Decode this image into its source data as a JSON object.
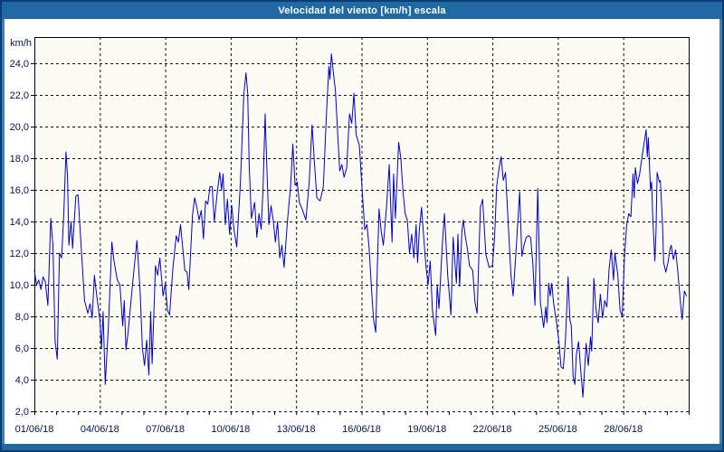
{
  "window": {
    "title": "Velocidad del viento [km/h] escala"
  },
  "colors": {
    "title_bar": "#2069a3",
    "frame_border": "#0c3c74",
    "edge_accent": "#3d7fb4",
    "series_line": "#0000cc",
    "grid_line": "#111111",
    "plot_background": "#fcfcf5",
    "axis_text": "#00134d"
  },
  "chart_data": {
    "type": "line",
    "title": "Velocidad del viento [km/h] escala",
    "ylabel": "km/h",
    "xlabel": "",
    "grid": "dashed",
    "legend_position": "none",
    "ylim": [
      2,
      25.66
    ],
    "xlim_days": [
      0,
      30
    ],
    "y_ticks": [
      {
        "value": 2,
        "label": "2,0"
      },
      {
        "value": 4,
        "label": "4,0"
      },
      {
        "value": 6,
        "label": "6,0"
      },
      {
        "value": 8,
        "label": "8,0"
      },
      {
        "value": 10,
        "label": "10,0"
      },
      {
        "value": 12,
        "label": "12,0"
      },
      {
        "value": 14,
        "label": "14,0"
      },
      {
        "value": 16,
        "label": "16,0"
      },
      {
        "value": 18,
        "label": "18,0"
      },
      {
        "value": 20,
        "label": "20,0"
      },
      {
        "value": 22,
        "label": "22,0"
      },
      {
        "value": 24,
        "label": "24,0"
      }
    ],
    "x_ticks": [
      {
        "day": 0,
        "label": "01/06/18"
      },
      {
        "day": 3,
        "label": "04/06/18"
      },
      {
        "day": 6,
        "label": "07/06/18"
      },
      {
        "day": 9,
        "label": "10/06/18"
      },
      {
        "day": 12,
        "label": "13/06/18"
      },
      {
        "day": 15,
        "label": "16/06/18"
      },
      {
        "day": 18,
        "label": "19/06/18"
      },
      {
        "day": 21,
        "label": "22/06/18"
      },
      {
        "day": 24,
        "label": "25/06/18"
      },
      {
        "day": 27,
        "label": "28/06/18"
      }
    ],
    "series": [
      {
        "name": "Velocidad del viento [km/h]",
        "points": [
          [
            0.0,
            10.9
          ],
          [
            0.1,
            10.0
          ],
          [
            0.2,
            10.3
          ],
          [
            0.3,
            9.7
          ],
          [
            0.4,
            10.5
          ],
          [
            0.5,
            10.2
          ],
          [
            0.62,
            8.7
          ],
          [
            0.75,
            14.2
          ],
          [
            0.85,
            12.5
          ],
          [
            0.95,
            6.4
          ],
          [
            1.05,
            5.3
          ],
          [
            1.15,
            12.0
          ],
          [
            1.25,
            11.7
          ],
          [
            1.35,
            14.5
          ],
          [
            1.45,
            18.4
          ],
          [
            1.52,
            16.9
          ],
          [
            1.58,
            12.5
          ],
          [
            1.68,
            14.0
          ],
          [
            1.75,
            12.3
          ],
          [
            1.9,
            15.6
          ],
          [
            2.0,
            15.7
          ],
          [
            2.15,
            12.3
          ],
          [
            2.3,
            9.0
          ],
          [
            2.45,
            8.2
          ],
          [
            2.55,
            8.8
          ],
          [
            2.65,
            7.9
          ],
          [
            2.75,
            10.6
          ],
          [
            2.85,
            9.4
          ],
          [
            3.0,
            7.8
          ],
          [
            3.08,
            6.0
          ],
          [
            3.15,
            8.3
          ],
          [
            3.25,
            3.7
          ],
          [
            3.4,
            7.5
          ],
          [
            3.55,
            12.7
          ],
          [
            3.65,
            11.5
          ],
          [
            3.8,
            10.3
          ],
          [
            3.92,
            10.0
          ],
          [
            4.05,
            7.4
          ],
          [
            4.12,
            9.0
          ],
          [
            4.2,
            5.9
          ],
          [
            4.3,
            7.0
          ],
          [
            4.5,
            10.0
          ],
          [
            4.7,
            12.8
          ],
          [
            4.85,
            9.5
          ],
          [
            4.95,
            6.0
          ],
          [
            5.05,
            4.9
          ],
          [
            5.15,
            6.5
          ],
          [
            5.25,
            4.3
          ],
          [
            5.33,
            8.3
          ],
          [
            5.4,
            5.0
          ],
          [
            5.55,
            11.2
          ],
          [
            5.65,
            10.6
          ],
          [
            5.75,
            11.7
          ],
          [
            5.9,
            9.3
          ],
          [
            6.0,
            10.1
          ],
          [
            6.1,
            8.4
          ],
          [
            6.2,
            8.1
          ],
          [
            6.35,
            11.0
          ],
          [
            6.5,
            13.1
          ],
          [
            6.6,
            12.7
          ],
          [
            6.7,
            13.8
          ],
          [
            6.9,
            10.9
          ],
          [
            7.0,
            10.8
          ],
          [
            7.08,
            9.7
          ],
          [
            7.25,
            14.4
          ],
          [
            7.35,
            15.5
          ],
          [
            7.45,
            14.9
          ],
          [
            7.55,
            14.1
          ],
          [
            7.65,
            14.7
          ],
          [
            7.75,
            12.9
          ],
          [
            7.85,
            15.3
          ],
          [
            7.95,
            15.1
          ],
          [
            8.05,
            16.2
          ],
          [
            8.15,
            16.2
          ],
          [
            8.25,
            14.0
          ],
          [
            8.38,
            15.8
          ],
          [
            8.5,
            17.1
          ],
          [
            8.58,
            16.0
          ],
          [
            8.65,
            17.0
          ],
          [
            8.75,
            13.8
          ],
          [
            8.85,
            15.4
          ],
          [
            8.95,
            13.2
          ],
          [
            9.05,
            15.0
          ],
          [
            9.15,
            13.5
          ],
          [
            9.28,
            12.4
          ],
          [
            9.45,
            16.5
          ],
          [
            9.6,
            22.0
          ],
          [
            9.7,
            23.4
          ],
          [
            9.78,
            22.1
          ],
          [
            9.85,
            17.5
          ],
          [
            9.95,
            14.2
          ],
          [
            10.1,
            15.2
          ],
          [
            10.2,
            13.0
          ],
          [
            10.3,
            14.5
          ],
          [
            10.4,
            13.5
          ],
          [
            10.48,
            16.0
          ],
          [
            10.58,
            20.8
          ],
          [
            10.65,
            17.7
          ],
          [
            10.75,
            13.8
          ],
          [
            10.85,
            15.0
          ],
          [
            10.95,
            14.1
          ],
          [
            11.05,
            12.7
          ],
          [
            11.15,
            14.0
          ],
          [
            11.25,
            11.7
          ],
          [
            11.35,
            12.5
          ],
          [
            11.45,
            11.1
          ],
          [
            11.6,
            14.0
          ],
          [
            11.75,
            16.3
          ],
          [
            11.85,
            18.9
          ],
          [
            11.95,
            16.3
          ],
          [
            12.05,
            16.5
          ],
          [
            12.15,
            15.2
          ],
          [
            12.3,
            14.7
          ],
          [
            12.45,
            14.1
          ],
          [
            12.6,
            16.5
          ],
          [
            12.73,
            20.1
          ],
          [
            12.85,
            17.5
          ],
          [
            12.95,
            15.5
          ],
          [
            13.1,
            15.3
          ],
          [
            13.25,
            16.2
          ],
          [
            13.4,
            21.0
          ],
          [
            13.5,
            23.8
          ],
          [
            13.55,
            23.0
          ],
          [
            13.62,
            24.6
          ],
          [
            13.7,
            23.5
          ],
          [
            13.8,
            22.3
          ],
          [
            13.9,
            19.7
          ],
          [
            14.0,
            17.2
          ],
          [
            14.1,
            17.6
          ],
          [
            14.2,
            16.8
          ],
          [
            14.32,
            17.4
          ],
          [
            14.45,
            20.8
          ],
          [
            14.55,
            20.2
          ],
          [
            14.65,
            22.1
          ],
          [
            14.75,
            19.5
          ],
          [
            14.9,
            18.8
          ],
          [
            15.05,
            15.5
          ],
          [
            15.15,
            13.5
          ],
          [
            15.25,
            13.8
          ],
          [
            15.35,
            12.3
          ],
          [
            15.45,
            9.9
          ],
          [
            15.55,
            7.8
          ],
          [
            15.65,
            7.0
          ],
          [
            15.72,
            11.0
          ],
          [
            15.8,
            14.8
          ],
          [
            15.9,
            13.4
          ],
          [
            16.0,
            12.5
          ],
          [
            16.15,
            15.0
          ],
          [
            16.27,
            17.6
          ],
          [
            16.4,
            12.7
          ],
          [
            16.47,
            17.0
          ],
          [
            16.55,
            14.2
          ],
          [
            16.7,
            19.0
          ],
          [
            16.8,
            18.0
          ],
          [
            16.9,
            15.9
          ],
          [
            17.0,
            14.5
          ],
          [
            17.1,
            14.1
          ],
          [
            17.2,
            12.0
          ],
          [
            17.3,
            13.2
          ],
          [
            17.4,
            11.7
          ],
          [
            17.5,
            13.8
          ],
          [
            17.57,
            11.4
          ],
          [
            17.65,
            13.5
          ],
          [
            17.75,
            14.9
          ],
          [
            17.85,
            13.0
          ],
          [
            17.95,
            11.2
          ],
          [
            18.05,
            10.0
          ],
          [
            18.15,
            11.5
          ],
          [
            18.25,
            8.4
          ],
          [
            18.4,
            6.8
          ],
          [
            18.47,
            10.0
          ],
          [
            18.55,
            8.5
          ],
          [
            18.7,
            12.5
          ],
          [
            18.8,
            14.5
          ],
          [
            18.95,
            10.6
          ],
          [
            19.1,
            8.1
          ],
          [
            19.2,
            13.0
          ],
          [
            19.35,
            10.1
          ],
          [
            19.42,
            13.2
          ],
          [
            19.5,
            9.9
          ],
          [
            19.6,
            13.4
          ],
          [
            19.67,
            14.1
          ],
          [
            19.75,
            13.1
          ],
          [
            19.85,
            12.3
          ],
          [
            19.95,
            11.2
          ],
          [
            20.1,
            10.9
          ],
          [
            20.2,
            8.9
          ],
          [
            20.3,
            8.2
          ],
          [
            20.45,
            14.9
          ],
          [
            20.55,
            15.4
          ],
          [
            20.7,
            11.9
          ],
          [
            20.85,
            11.1
          ],
          [
            21.0,
            11.2
          ],
          [
            21.1,
            13.0
          ],
          [
            21.2,
            16.3
          ],
          [
            21.3,
            17.3
          ],
          [
            21.4,
            18.1
          ],
          [
            21.5,
            16.6
          ],
          [
            21.6,
            17.1
          ],
          [
            21.75,
            13.2
          ],
          [
            21.85,
            10.6
          ],
          [
            21.95,
            9.3
          ],
          [
            22.1,
            12.5
          ],
          [
            22.25,
            15.9
          ],
          [
            22.35,
            11.8
          ],
          [
            22.45,
            12.5
          ],
          [
            22.55,
            13.0
          ],
          [
            22.65,
            13.1
          ],
          [
            22.75,
            13.0
          ],
          [
            22.85,
            11.4
          ],
          [
            22.95,
            8.7
          ],
          [
            23.08,
            16.1
          ],
          [
            23.2,
            8.9
          ],
          [
            23.35,
            7.3
          ],
          [
            23.45,
            8.6
          ],
          [
            23.5,
            7.6
          ],
          [
            23.58,
            10.1
          ],
          [
            23.65,
            9.3
          ],
          [
            23.72,
            10.1
          ],
          [
            23.8,
            8.9
          ],
          [
            23.95,
            7.5
          ],
          [
            24.05,
            6.4
          ],
          [
            24.15,
            4.8
          ],
          [
            24.25,
            4.7
          ],
          [
            24.35,
            6.5
          ],
          [
            24.47,
            10.5
          ],
          [
            24.55,
            7.8
          ],
          [
            24.62,
            7.4
          ],
          [
            24.7,
            4.2
          ],
          [
            24.78,
            3.7
          ],
          [
            24.85,
            5.6
          ],
          [
            24.95,
            6.4
          ],
          [
            25.05,
            4.6
          ],
          [
            25.15,
            2.9
          ],
          [
            25.3,
            6.3
          ],
          [
            25.4,
            4.9
          ],
          [
            25.5,
            6.7
          ],
          [
            25.55,
            5.8
          ],
          [
            25.65,
            10.4
          ],
          [
            25.75,
            8.4
          ],
          [
            25.85,
            7.6
          ],
          [
            25.95,
            9.4
          ],
          [
            26.05,
            7.9
          ],
          [
            26.15,
            9.0
          ],
          [
            26.25,
            8.6
          ],
          [
            26.35,
            11.0
          ],
          [
            26.45,
            12.2
          ],
          [
            26.55,
            10.3
          ],
          [
            26.62,
            12.0
          ],
          [
            26.75,
            10.6
          ],
          [
            26.85,
            8.4
          ],
          [
            26.95,
            8.0
          ],
          [
            27.05,
            11.6
          ],
          [
            27.15,
            13.7
          ],
          [
            27.25,
            14.5
          ],
          [
            27.35,
            14.3
          ],
          [
            27.45,
            17.0
          ],
          [
            27.5,
            15.5
          ],
          [
            27.55,
            17.4
          ],
          [
            27.65,
            16.4
          ],
          [
            27.75,
            17.0
          ],
          [
            27.85,
            18.0
          ],
          [
            27.95,
            18.9
          ],
          [
            28.05,
            19.8
          ],
          [
            28.1,
            18.1
          ],
          [
            28.15,
            19.3
          ],
          [
            28.25,
            16.0
          ],
          [
            28.3,
            16.5
          ],
          [
            28.35,
            14.4
          ],
          [
            28.45,
            11.5
          ],
          [
            28.5,
            13.4
          ],
          [
            28.55,
            17.1
          ],
          [
            28.65,
            16.5
          ],
          [
            28.7,
            16.6
          ],
          [
            28.8,
            13.8
          ],
          [
            28.85,
            11.4
          ],
          [
            28.95,
            10.8
          ],
          [
            29.05,
            11.4
          ],
          [
            29.15,
            12.3
          ],
          [
            29.2,
            12.5
          ],
          [
            29.3,
            11.6
          ],
          [
            29.4,
            12.2
          ],
          [
            29.5,
            10.9
          ],
          [
            29.55,
            10.0
          ],
          [
            29.65,
            8.4
          ],
          [
            29.7,
            7.8
          ],
          [
            29.8,
            9.6
          ],
          [
            29.9,
            9.3
          ]
        ]
      }
    ]
  }
}
